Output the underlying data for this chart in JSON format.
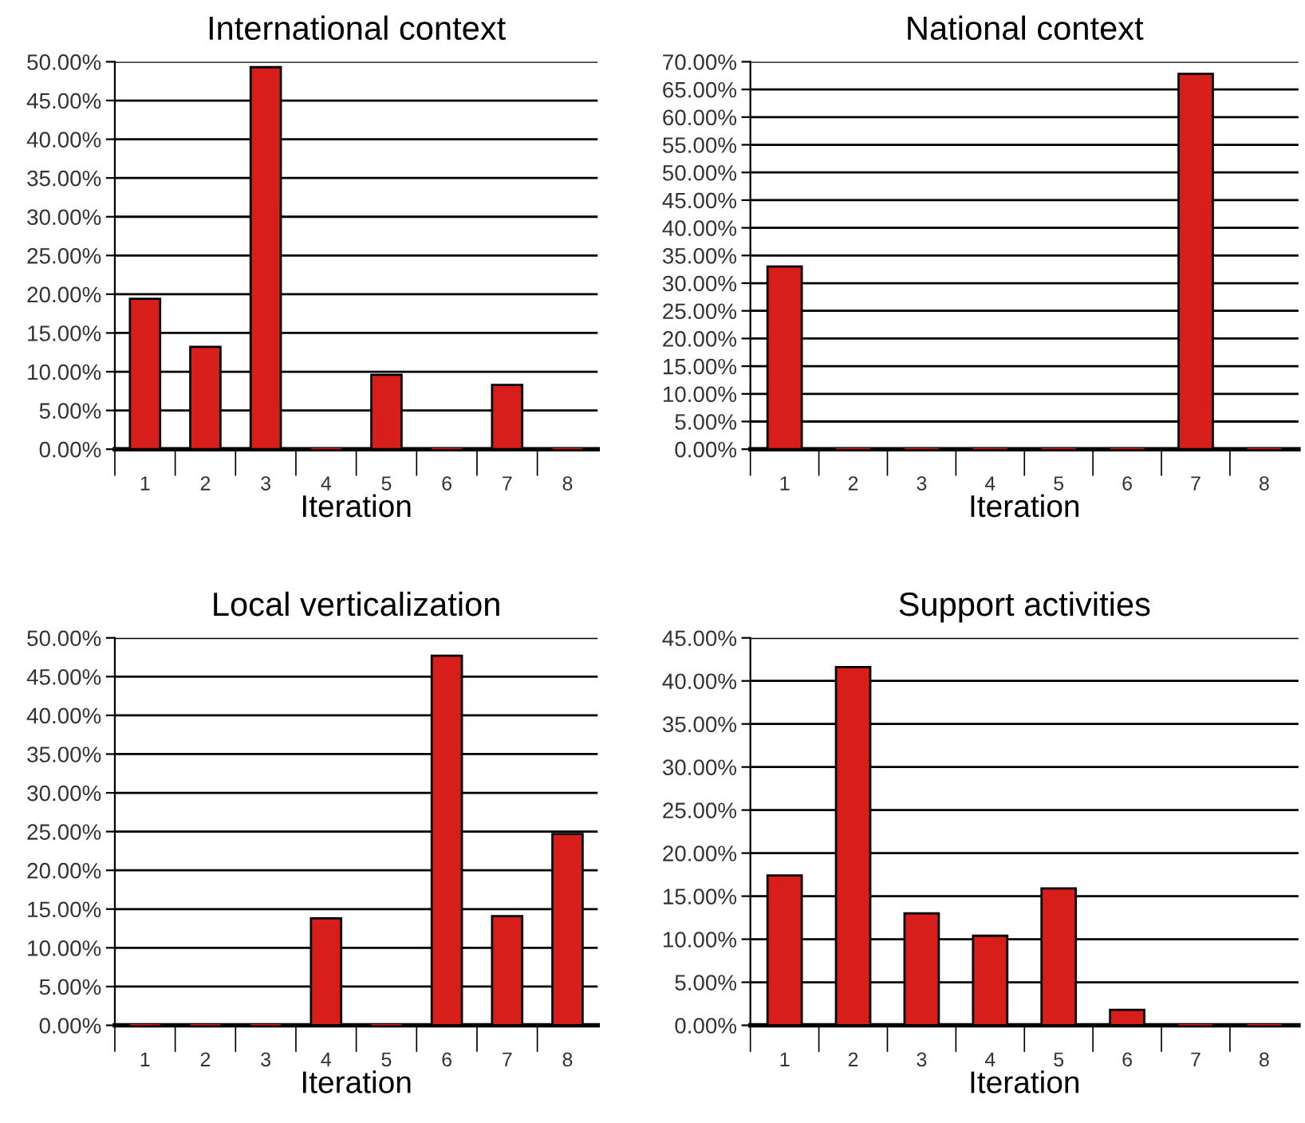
{
  "chart_data": [
    {
      "type": "bar",
      "title": "International context",
      "xlabel": "Iteration",
      "categories": [
        "1",
        "2",
        "3",
        "4",
        "5",
        "6",
        "7",
        "8"
      ],
      "values": [
        19.4,
        13.2,
        49.3,
        0,
        9.6,
        0,
        8.3,
        0
      ],
      "color": "#d81e1a",
      "ylim": [
        0,
        50
      ],
      "yticks": [
        {
          "value": 0,
          "label": "0.00%"
        },
        {
          "value": 5,
          "label": "5.00%"
        },
        {
          "value": 10,
          "label": "10.00%"
        },
        {
          "value": 15,
          "label": "15.00%"
        },
        {
          "value": 20,
          "label": "20.00%"
        },
        {
          "value": 25,
          "label": "25.00%"
        },
        {
          "value": 30,
          "label": "30.00%"
        },
        {
          "value": 35,
          "label": "35.00%"
        },
        {
          "value": 40,
          "label": "40.00%"
        },
        {
          "value": 45,
          "label": "45.00%"
        },
        {
          "value": 50,
          "label": "50.00%"
        }
      ],
      "grid": "y"
    },
    {
      "type": "bar",
      "title": "National context",
      "xlabel": "Iteration",
      "categories": [
        "1",
        "2",
        "3",
        "4",
        "5",
        "6",
        "7",
        "8"
      ],
      "values": [
        33.0,
        0,
        0,
        0,
        0,
        0,
        67.8,
        0
      ],
      "color": "#d81e1a",
      "ylim": [
        0,
        70
      ],
      "yticks": [
        {
          "value": 0,
          "label": "0.00%"
        },
        {
          "value": 5,
          "label": "5.00%"
        },
        {
          "value": 10,
          "label": "10.00%"
        },
        {
          "value": 15,
          "label": "15.00%"
        },
        {
          "value": 20,
          "label": "20.00%"
        },
        {
          "value": 25,
          "label": "25.00%"
        },
        {
          "value": 30,
          "label": "30.00%"
        },
        {
          "value": 35,
          "label": "35.00%"
        },
        {
          "value": 40,
          "label": "40.00%"
        },
        {
          "value": 45,
          "label": "45.00%"
        },
        {
          "value": 50,
          "label": "50.00%"
        },
        {
          "value": 55,
          "label": "55.00%"
        },
        {
          "value": 60,
          "label": "60.00%"
        },
        {
          "value": 65,
          "label": "65.00%"
        },
        {
          "value": 70,
          "label": "70.00%"
        }
      ],
      "grid": "y"
    },
    {
      "type": "bar",
      "title": "Local verticalization",
      "xlabel": "Iteration",
      "categories": [
        "1",
        "2",
        "3",
        "4",
        "5",
        "6",
        "7",
        "8"
      ],
      "values": [
        0,
        0,
        0,
        13.8,
        0,
        47.7,
        14.1,
        24.7
      ],
      "color": "#d81e1a",
      "ylim": [
        0,
        50
      ],
      "yticks": [
        {
          "value": 0,
          "label": "0.00%"
        },
        {
          "value": 5,
          "label": "5.00%"
        },
        {
          "value": 10,
          "label": "10.00%"
        },
        {
          "value": 15,
          "label": "15.00%"
        },
        {
          "value": 20,
          "label": "20.00%"
        },
        {
          "value": 25,
          "label": "25.00%"
        },
        {
          "value": 30,
          "label": "30.00%"
        },
        {
          "value": 35,
          "label": "35.00%"
        },
        {
          "value": 40,
          "label": "40.00%"
        },
        {
          "value": 45,
          "label": "45.00%"
        },
        {
          "value": 50,
          "label": "50.00%"
        }
      ],
      "grid": "y"
    },
    {
      "type": "bar",
      "title": "Support activities",
      "xlabel": "Iteration",
      "categories": [
        "1",
        "2",
        "3",
        "4",
        "5",
        "6",
        "7",
        "8"
      ],
      "values": [
        17.4,
        41.6,
        13.0,
        10.4,
        15.9,
        1.8,
        0,
        0
      ],
      "color": "#d81e1a",
      "ylim": [
        0,
        45
      ],
      "yticks": [
        {
          "value": 0,
          "label": "0.00%"
        },
        {
          "value": 5,
          "label": "5.00%"
        },
        {
          "value": 10,
          "label": "10.00%"
        },
        {
          "value": 15,
          "label": "15.00%"
        },
        {
          "value": 20,
          "label": "20.00%"
        },
        {
          "value": 25,
          "label": "25.00%"
        },
        {
          "value": 30,
          "label": "30.00%"
        },
        {
          "value": 35,
          "label": "35.00%"
        },
        {
          "value": 40,
          "label": "40.00%"
        },
        {
          "value": 45,
          "label": "45.00%"
        }
      ],
      "grid": "y"
    }
  ]
}
